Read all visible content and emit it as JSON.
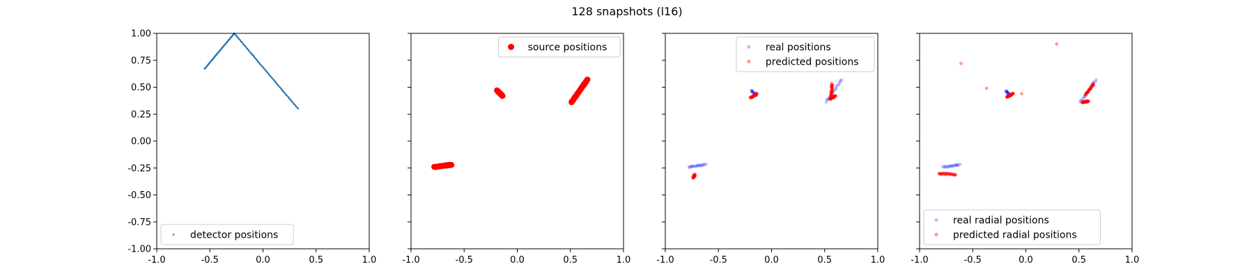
{
  "figure": {
    "title": "128 snapshots (l16)"
  },
  "colors": {
    "detector": "#1f77b4",
    "source": "#ff0000",
    "real": "#0000ff",
    "predicted": "#ff0000",
    "axes": "#000000",
    "legend_border": "#cccccc"
  },
  "chart_data": [
    {
      "type": "scatter",
      "title": "",
      "xlabel": "",
      "ylabel": "",
      "xlim": [
        -1.0,
        1.0
      ],
      "ylim": [
        -1.0,
        1.0
      ],
      "xticks": [
        "-1.0",
        "-0.5",
        "0.0",
        "0.5",
        "1.0"
      ],
      "yticks": [
        "-1.00",
        "-0.75",
        "-0.50",
        "-0.25",
        "0.00",
        "0.25",
        "0.50",
        "0.75",
        "1.00"
      ],
      "show_yticklabels": true,
      "grid": false,
      "legend_position": "lower-left",
      "series": [
        {
          "name": "detector positions",
          "marker": "point",
          "color_key": "detector",
          "opacity": 1.0,
          "path": [
            [
              -0.55,
              0.67
            ],
            [
              -0.27,
              1.0
            ],
            [
              0.33,
              0.3
            ]
          ]
        }
      ]
    },
    {
      "type": "scatter",
      "title": "",
      "xlabel": "",
      "ylabel": "",
      "xlim": [
        -1.0,
        1.0
      ],
      "ylim": [
        -1.0,
        1.0
      ],
      "xticks": [
        "-1.0",
        "-0.5",
        "0.0",
        "0.5",
        "1.0"
      ],
      "yticks": [
        "-1.00",
        "-0.75",
        "-0.50",
        "-0.25",
        "0.00",
        "0.25",
        "0.50",
        "0.75",
        "1.00"
      ],
      "show_yticklabels": false,
      "grid": false,
      "legend_position": "upper-right",
      "series": [
        {
          "name": "source positions",
          "marker": "circle-large",
          "color_key": "source",
          "opacity": 1.0,
          "segments": [
            [
              [
                -0.78,
                -0.24
              ],
              [
                -0.62,
                -0.22
              ]
            ],
            [
              [
                -0.19,
                0.47
              ],
              [
                -0.14,
                0.42
              ]
            ],
            [
              [
                0.51,
                0.36
              ],
              [
                0.66,
                0.57
              ]
            ]
          ]
        }
      ]
    },
    {
      "type": "scatter",
      "title": "",
      "xlabel": "",
      "ylabel": "",
      "xlim": [
        -1.0,
        1.0
      ],
      "ylim": [
        -1.0,
        1.0
      ],
      "xticks": [
        "-1.0",
        "-0.5",
        "0.0",
        "0.5",
        "1.0"
      ],
      "yticks": [
        "-1.00",
        "-0.75",
        "-0.50",
        "-0.25",
        "0.00",
        "0.25",
        "0.50",
        "0.75",
        "1.00"
      ],
      "show_yticklabels": false,
      "grid": false,
      "legend_position": "upper-right",
      "series": [
        {
          "name": "real positions",
          "marker": "circle-small",
          "color_key": "real",
          "opacity": 0.15,
          "segments": [
            [
              [
                -0.78,
                -0.24
              ],
              [
                -0.62,
                -0.22
              ]
            ],
            [
              [
                -0.19,
                0.47
              ],
              [
                -0.14,
                0.42
              ]
            ],
            [
              [
                0.51,
                0.36
              ],
              [
                0.66,
                0.57
              ]
            ]
          ]
        },
        {
          "name": "predicted positions",
          "marker": "circle-small",
          "color_key": "predicted",
          "opacity": 0.4,
          "segments": [
            [
              [
                -0.74,
                -0.34
              ],
              [
                -0.72,
                -0.31
              ]
            ],
            [
              [
                -0.2,
                0.4
              ],
              [
                -0.14,
                0.44
              ]
            ],
            [
              [
                0.56,
                0.4
              ],
              [
                0.57,
                0.53
              ]
            ],
            [
              [
                0.55,
                0.39
              ],
              [
                0.6,
                0.42
              ]
            ]
          ]
        }
      ]
    },
    {
      "type": "scatter",
      "title": "",
      "xlabel": "",
      "ylabel": "",
      "xlim": [
        -1.0,
        1.0
      ],
      "ylim": [
        -1.0,
        1.0
      ],
      "xticks": [
        "-1.0",
        "-0.5",
        "0.0",
        "0.5",
        "1.0"
      ],
      "yticks": [
        "-1.00",
        "-0.75",
        "-0.50",
        "-0.25",
        "0.00",
        "0.25",
        "0.50",
        "0.75",
        "1.00"
      ],
      "show_yticklabels": false,
      "grid": false,
      "legend_position": "lower-left",
      "series": [
        {
          "name": "real radial positions",
          "marker": "circle-small",
          "color_key": "real",
          "opacity": 0.15,
          "segments": [
            [
              [
                -0.78,
                -0.24
              ],
              [
                -0.62,
                -0.22
              ]
            ],
            [
              [
                -0.19,
                0.47
              ],
              [
                -0.14,
                0.42
              ]
            ],
            [
              [
                0.51,
                0.36
              ],
              [
                0.66,
                0.57
              ]
            ]
          ]
        },
        {
          "name": "predicted radial positions",
          "marker": "circle-small",
          "color_key": "predicted",
          "opacity": 0.4,
          "segments": [
            [
              [
                -0.82,
                -0.3
              ],
              [
                -0.66,
                -0.31
              ]
            ],
            [
              [
                -0.18,
                0.41
              ],
              [
                -0.12,
                0.44
              ]
            ],
            [
              [
                0.53,
                0.36
              ],
              [
                0.59,
                0.37
              ]
            ],
            [
              [
                0.56,
                0.43
              ],
              [
                0.64,
                0.53
              ]
            ]
          ],
          "points": [
            [
              -0.61,
              0.72
            ],
            [
              -0.37,
              0.49
            ],
            [
              -0.04,
              0.44
            ],
            [
              0.29,
              0.9
            ]
          ]
        }
      ]
    }
  ]
}
